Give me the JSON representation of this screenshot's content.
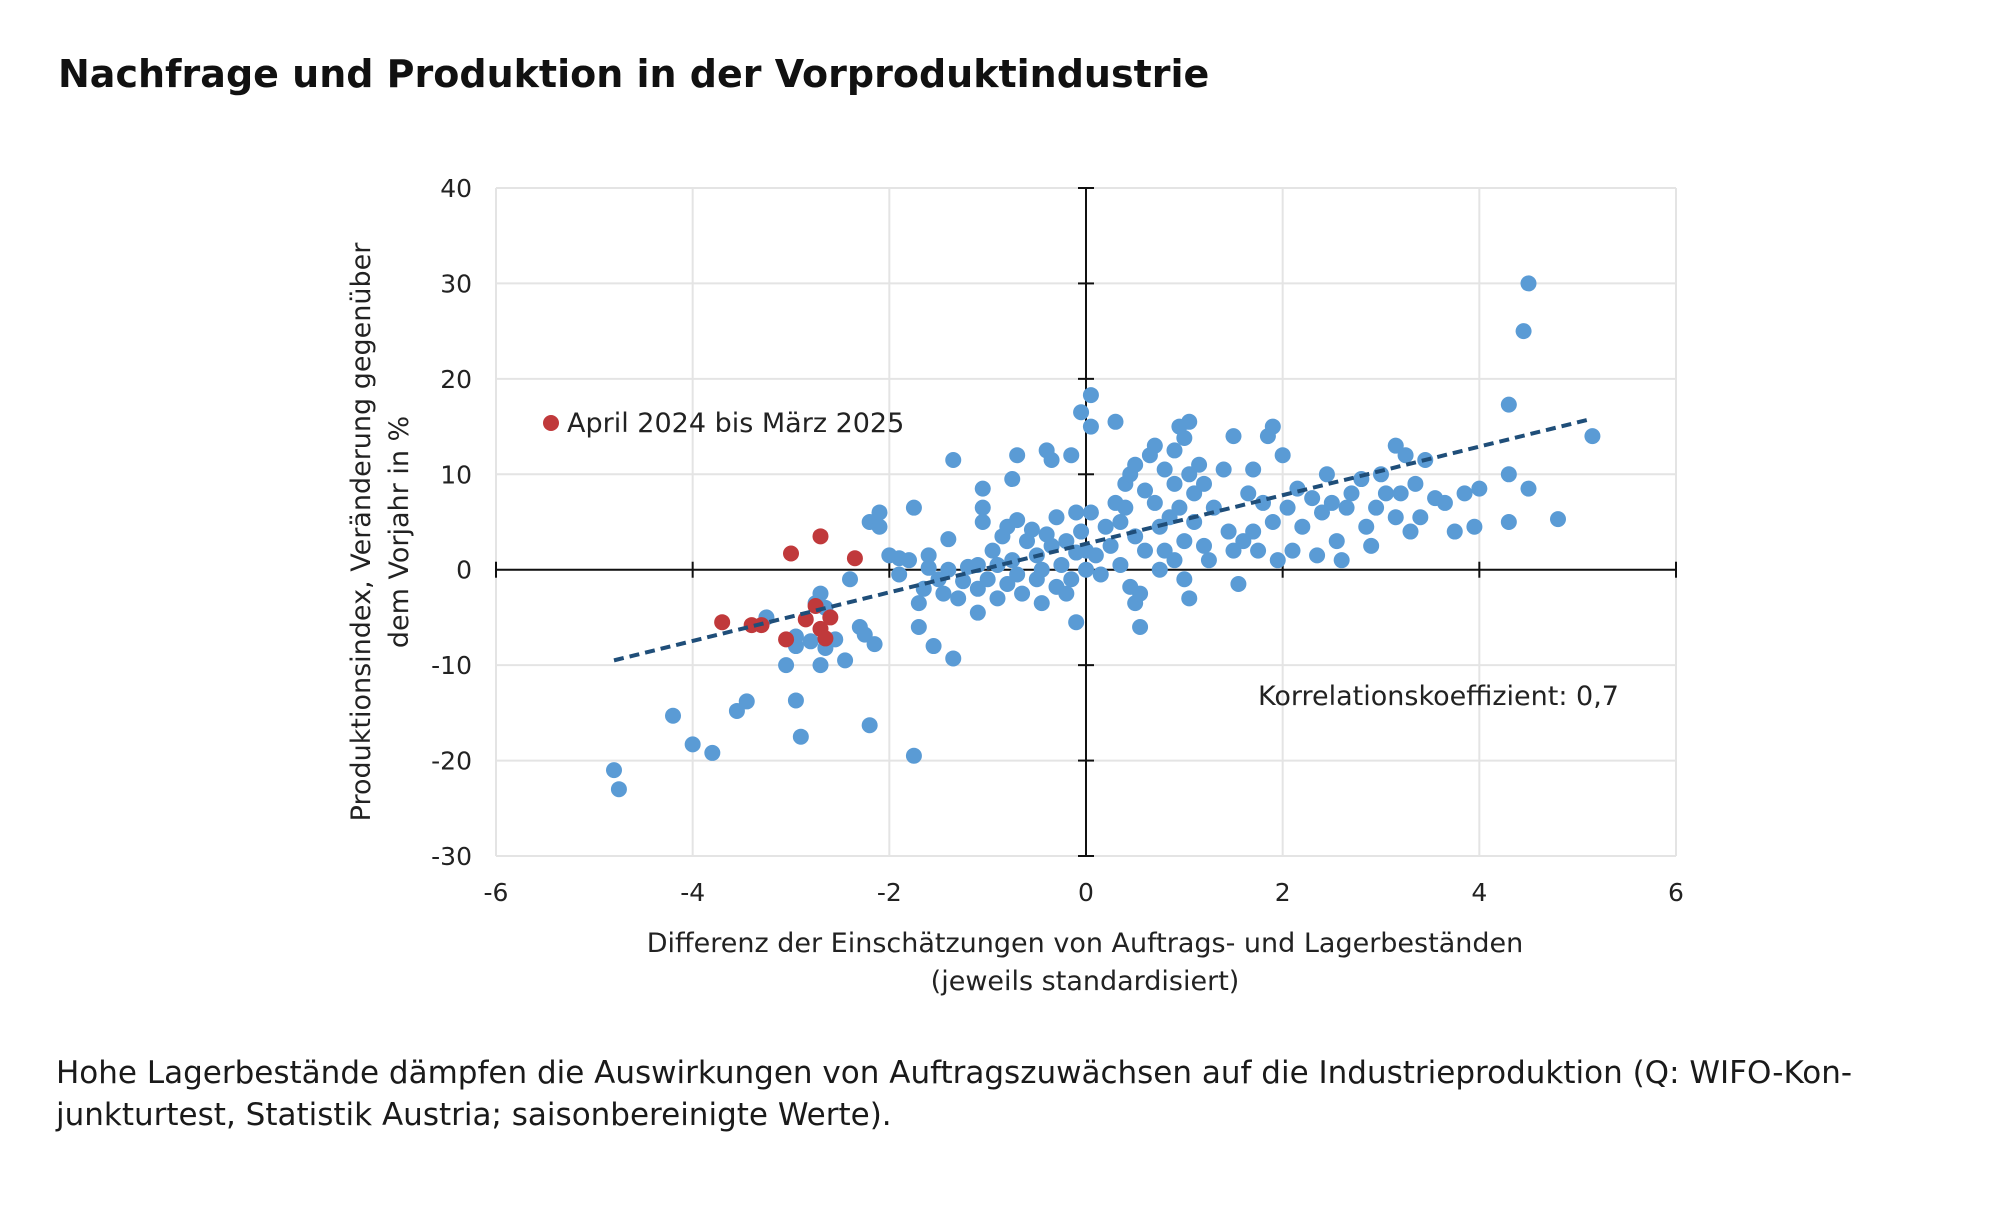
{
  "title": "Nachfrage und Produktion in der Vorproduktindustrie",
  "caption": "Hohe Lagerbestände dämpfen die Auswirkungen von Auftragszuwächsen auf die Industrieproduktion (Q: WIFO-Kon-junkturtest, Statistik Austria; saisonbereinigte Werte).",
  "chart_data": {
    "type": "scatter",
    "xlabel": [
      "Differenz der Einschätzungen von Auftrags- und Lagerbeständen",
      "(jeweils standardisiert)"
    ],
    "ylabel": [
      "Produktionsindex, Veränderung gegenüber",
      "dem Vorjahr in %"
    ],
    "xlim": [
      -6,
      6
    ],
    "ylim": [
      -30,
      40
    ],
    "x_ticks": [
      "-6",
      "-4",
      "-2",
      "0",
      "2",
      "4",
      "6"
    ],
    "y_ticks": [
      "40",
      "30",
      "20",
      "10",
      "0",
      "-10",
      "-20",
      "-30"
    ],
    "grid": true,
    "legend": {
      "label": "April 2024 bis März 2025",
      "color": "#c0393b",
      "position": "top-left"
    },
    "annotation": "Korrelationskoeffizient: 0,7",
    "colors": {
      "main": "#5a9bd5",
      "highlight": "#c0393b",
      "trend": "#1f4e79"
    },
    "trendline": {
      "x": [
        -4.8,
        5.1
      ],
      "y": [
        -9.5,
        15.7
      ],
      "style": "dashed"
    },
    "series": [
      {
        "name": "",
        "color": "#5a9bd5",
        "points": [
          [
            -4.8,
            -21
          ],
          [
            -4.75,
            -23
          ],
          [
            -4.2,
            -15.3
          ],
          [
            -4.0,
            -18.3
          ],
          [
            -3.8,
            -19.2
          ],
          [
            -3.55,
            -14.8
          ],
          [
            -3.45,
            -13.8
          ],
          [
            -3.25,
            -5
          ],
          [
            -3.05,
            -10
          ],
          [
            -2.95,
            -13.7
          ],
          [
            -2.9,
            -17.5
          ],
          [
            -2.95,
            -8
          ],
          [
            -2.95,
            -7
          ],
          [
            -2.8,
            -7.5
          ],
          [
            -2.75,
            -3.5
          ],
          [
            -2.7,
            -2.5
          ],
          [
            -2.65,
            -4
          ],
          [
            -2.7,
            -10
          ],
          [
            -2.65,
            -8.2
          ],
          [
            -2.55,
            -7.3
          ],
          [
            -2.45,
            -9.5
          ],
          [
            -2.4,
            -1
          ],
          [
            -2.3,
            -6
          ],
          [
            -2.25,
            -6.8
          ],
          [
            -2.2,
            -16.3
          ],
          [
            -2.2,
            5
          ],
          [
            -2.15,
            -7.8
          ],
          [
            -2.1,
            6
          ],
          [
            -2.1,
            4.5
          ],
          [
            -2.0,
            1.5
          ],
          [
            -1.9,
            -0.5
          ],
          [
            -1.9,
            1.2
          ],
          [
            -1.8,
            1
          ],
          [
            -1.75,
            6.5
          ],
          [
            -1.75,
            -19.5
          ],
          [
            -1.7,
            -6
          ],
          [
            -1.7,
            -3.5
          ],
          [
            -1.65,
            -2
          ],
          [
            -1.6,
            1.5
          ],
          [
            -1.6,
            0.2
          ],
          [
            -1.55,
            -8
          ],
          [
            -1.5,
            -1
          ],
          [
            -1.45,
            -2.5
          ],
          [
            -1.4,
            3.2
          ],
          [
            -1.4,
            0
          ],
          [
            -1.35,
            11.5
          ],
          [
            -1.35,
            -9.3
          ],
          [
            -1.3,
            -3
          ],
          [
            -1.25,
            -1.2
          ],
          [
            -1.2,
            0.3
          ],
          [
            -1.1,
            0.5
          ],
          [
            -1.1,
            -2
          ],
          [
            -1.1,
            -4.5
          ],
          [
            -1.05,
            8.5
          ],
          [
            -1.05,
            6.5
          ],
          [
            -1.05,
            5
          ],
          [
            -1.0,
            -1
          ],
          [
            -0.95,
            2
          ],
          [
            -0.9,
            -3
          ],
          [
            -0.9,
            0.5
          ],
          [
            -0.85,
            3.5
          ],
          [
            -0.8,
            4.5
          ],
          [
            -0.8,
            -1.5
          ],
          [
            -0.75,
            1
          ],
          [
            -0.75,
            9.5
          ],
          [
            -0.7,
            12
          ],
          [
            -0.7,
            5.2
          ],
          [
            -0.7,
            -0.5
          ],
          [
            -0.65,
            -2.5
          ],
          [
            -0.6,
            3
          ],
          [
            -0.55,
            4.2
          ],
          [
            -0.5,
            1.5
          ],
          [
            -0.5,
            -1
          ],
          [
            -0.45,
            -3.5
          ],
          [
            -0.45,
            0
          ],
          [
            -0.4,
            12.5
          ],
          [
            -0.4,
            3.7
          ],
          [
            -0.35,
            11.5
          ],
          [
            -0.35,
            2.5
          ],
          [
            -0.3,
            -1.8
          ],
          [
            -0.3,
            5.5
          ],
          [
            -0.25,
            0.5
          ],
          [
            -0.2,
            3
          ],
          [
            -0.2,
            -2.5
          ],
          [
            -0.15,
            12
          ],
          [
            -0.15,
            -1
          ],
          [
            -0.1,
            6
          ],
          [
            -0.1,
            1.8
          ],
          [
            -0.1,
            -5.5
          ],
          [
            -0.05,
            16.5
          ],
          [
            -0.05,
            4
          ],
          [
            0.0,
            0
          ],
          [
            0.0,
            2
          ],
          [
            0.05,
            18.3
          ],
          [
            0.05,
            15
          ],
          [
            0.05,
            6
          ],
          [
            0.1,
            1.5
          ],
          [
            0.15,
            -0.5
          ],
          [
            0.2,
            4.5
          ],
          [
            0.25,
            2.5
          ],
          [
            0.3,
            15.5
          ],
          [
            0.3,
            7
          ],
          [
            0.35,
            0.5
          ],
          [
            0.35,
            5
          ],
          [
            0.4,
            6.5
          ],
          [
            0.4,
            9
          ],
          [
            0.45,
            10
          ],
          [
            0.45,
            -1.8
          ],
          [
            0.5,
            11
          ],
          [
            0.5,
            3.5
          ],
          [
            0.5,
            -3.5
          ],
          [
            0.55,
            -6
          ],
          [
            0.55,
            -2.5
          ],
          [
            0.6,
            2
          ],
          [
            0.6,
            8.3
          ],
          [
            0.65,
            12
          ],
          [
            0.7,
            13
          ],
          [
            0.7,
            7
          ],
          [
            0.75,
            0
          ],
          [
            0.75,
            4.5
          ],
          [
            0.8,
            10.5
          ],
          [
            0.8,
            2
          ],
          [
            0.85,
            5.5
          ],
          [
            0.9,
            12.5
          ],
          [
            0.9,
            9
          ],
          [
            0.9,
            1
          ],
          [
            0.95,
            15
          ],
          [
            0.95,
            6.5
          ],
          [
            1.0,
            13.8
          ],
          [
            1.0,
            3
          ],
          [
            1.0,
            -1
          ],
          [
            1.05,
            15.5
          ],
          [
            1.05,
            10
          ],
          [
            1.05,
            -3
          ],
          [
            1.1,
            5
          ],
          [
            1.1,
            8
          ],
          [
            1.15,
            11
          ],
          [
            1.2,
            2.5
          ],
          [
            1.2,
            9
          ],
          [
            1.25,
            1
          ],
          [
            1.3,
            6.5
          ],
          [
            1.4,
            10.5
          ],
          [
            1.45,
            4
          ],
          [
            1.5,
            2
          ],
          [
            1.5,
            14
          ],
          [
            1.55,
            -1.5
          ],
          [
            1.6,
            3
          ],
          [
            1.65,
            8
          ],
          [
            1.7,
            4
          ],
          [
            1.7,
            10.5
          ],
          [
            1.75,
            2
          ],
          [
            1.8,
            7
          ],
          [
            1.85,
            14
          ],
          [
            1.9,
            15
          ],
          [
            1.9,
            5
          ],
          [
            1.95,
            1
          ],
          [
            2.0,
            12
          ],
          [
            2.05,
            6.5
          ],
          [
            2.1,
            2
          ],
          [
            2.15,
            8.5
          ],
          [
            2.2,
            4.5
          ],
          [
            2.3,
            7.5
          ],
          [
            2.35,
            1.5
          ],
          [
            2.4,
            6
          ],
          [
            2.45,
            10
          ],
          [
            2.5,
            7
          ],
          [
            2.55,
            3
          ],
          [
            2.6,
            1
          ],
          [
            2.65,
            6.5
          ],
          [
            2.7,
            8
          ],
          [
            2.8,
            9.5
          ],
          [
            2.85,
            4.5
          ],
          [
            2.9,
            2.5
          ],
          [
            2.95,
            6.5
          ],
          [
            3.0,
            10
          ],
          [
            3.05,
            8
          ],
          [
            3.15,
            5.5
          ],
          [
            3.15,
            13
          ],
          [
            3.2,
            8
          ],
          [
            3.25,
            12
          ],
          [
            3.3,
            4
          ],
          [
            3.35,
            9
          ],
          [
            3.4,
            5.5
          ],
          [
            3.45,
            11.5
          ],
          [
            3.55,
            7.5
          ],
          [
            3.65,
            7
          ],
          [
            3.75,
            4
          ],
          [
            3.85,
            8
          ],
          [
            3.95,
            4.5
          ],
          [
            4.0,
            8.5
          ],
          [
            4.3,
            17.3
          ],
          [
            4.3,
            10
          ],
          [
            4.3,
            5
          ],
          [
            4.45,
            25
          ],
          [
            4.5,
            30
          ],
          [
            4.5,
            8.5
          ],
          [
            4.8,
            5.3
          ],
          [
            5.15,
            14
          ]
        ]
      },
      {
        "name": "April 2024 bis März 2025",
        "color": "#c0393b",
        "points": [
          [
            -3.7,
            -5.5
          ],
          [
            -3.4,
            -5.8
          ],
          [
            -3.3,
            -5.8
          ],
          [
            -3.05,
            -7.3
          ],
          [
            -3.0,
            1.7
          ],
          [
            -2.85,
            -5.2
          ],
          [
            -2.75,
            -3.8
          ],
          [
            -2.7,
            3.5
          ],
          [
            -2.7,
            -6.2
          ],
          [
            -2.65,
            -7.2
          ],
          [
            -2.6,
            -5
          ],
          [
            -2.35,
            1.2
          ]
        ]
      }
    ]
  }
}
